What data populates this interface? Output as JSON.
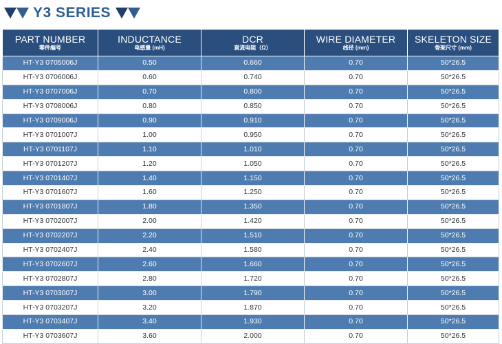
{
  "title": "Y3 SERIES",
  "colors": {
    "header_bg": "#2a4f7f",
    "odd_row_bg": "#4f7cb0",
    "even_row_bg": "#ffffff",
    "title": "#2f5f91"
  },
  "icons": {
    "left": "double-triangle-icon",
    "right": "double-triangle-icon"
  },
  "headers": [
    {
      "en": "PART NUMBER",
      "cn": "零件编号"
    },
    {
      "en": "INDUCTANCE",
      "cn": "电感量 (mH)"
    },
    {
      "en": "DCR",
      "cn": "直流电阻（Ω）"
    },
    {
      "en": "WIRE DIAMETER",
      "cn": "线径 (mm)"
    },
    {
      "en": "SKELETON SIZE",
      "cn": "骨架尺寸 (mm)"
    }
  ],
  "rows": [
    [
      "HT-Y3 0705006J",
      "0.50",
      "0.660",
      "0.70",
      "50*26.5"
    ],
    [
      "HT-Y3 0706006J",
      "0.60",
      "0.740",
      "0.70",
      "50*26.5"
    ],
    [
      "HT-Y3 0707006J",
      "0.70",
      "0.800",
      "0.70",
      "50*26.5"
    ],
    [
      "HT-Y3 0708006J",
      "0.80",
      "0.850",
      "0.70",
      "50*26.5"
    ],
    [
      "HT-Y3 0709006J",
      "0.90",
      "0.910",
      "0.70",
      "50*26.5"
    ],
    [
      "HT-Y3 0701007J",
      "1.00",
      "0.950",
      "0.70",
      "50*26.5"
    ],
    [
      "HT-Y3 0701107J",
      "1.10",
      "1.010",
      "0.70",
      "50*26.5"
    ],
    [
      "HT-Y3 0701207J",
      "1.20",
      "1.050",
      "0.70",
      "50*26.5"
    ],
    [
      "HT-Y3 0701407J",
      "1.40",
      "1.150",
      "0.70",
      "50*26.5"
    ],
    [
      "HT-Y3 0701607J",
      "1.60",
      "1.250",
      "0.70",
      "50*26.5"
    ],
    [
      "HT-Y3 0701807J",
      "1.80",
      "1.350",
      "0.70",
      "50*26.5"
    ],
    [
      "HT-Y3 0702007J",
      "2.00",
      "1.420",
      "0.70",
      "50*26.5"
    ],
    [
      "HT-Y3 0702207J",
      "2.20",
      "1.510",
      "0.70",
      "50*26.5"
    ],
    [
      "HT-Y3 0702407J",
      "2.40",
      "1.580",
      "0.70",
      "50*26.5"
    ],
    [
      "HT-Y3 0702607J",
      "2.60",
      "1.660",
      "0.70",
      "50*26.5"
    ],
    [
      "HT-Y3 0702807J",
      "2.80",
      "1.720",
      "0.70",
      "50*26.5"
    ],
    [
      "HT-Y3 0703007J",
      "3.00",
      "1.790",
      "0.70",
      "50*26.5"
    ],
    [
      "HT-Y3 0703207J",
      "3.20",
      "1.870",
      "0.70",
      "50*26.5"
    ],
    [
      "HT-Y3 0703407J",
      "3.40",
      "1.930",
      "0.70",
      "50*26.5"
    ],
    [
      "HT-Y3 0703607J",
      "3.60",
      "2.000",
      "0.70",
      "50*26.5"
    ]
  ]
}
